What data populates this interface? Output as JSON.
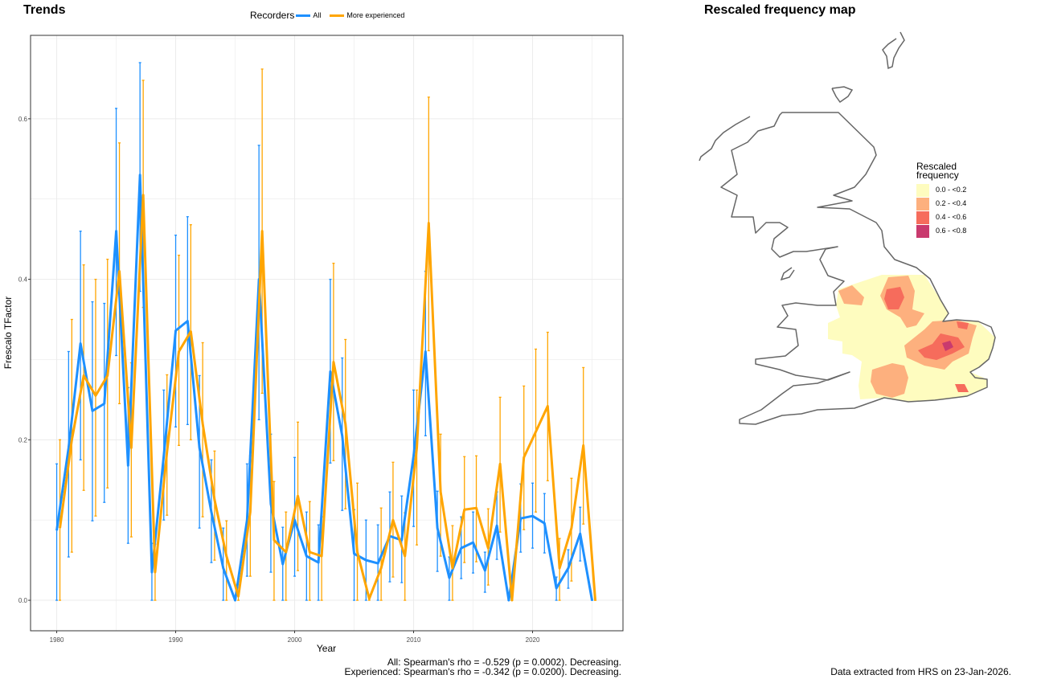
{
  "left_panel": {
    "title": "Trends"
  },
  "right_panel": {
    "title": "Rescaled frequency map"
  },
  "legend": {
    "title": "Recorders",
    "items": [
      {
        "label": "All",
        "color": "#1E90FF"
      },
      {
        "label": "More experienced",
        "color": "#FFA500"
      }
    ]
  },
  "footer": {
    "stats_all": "All: Spearman's rho = -0.529 (p = 0.0002). Decreasing.",
    "stats_experienced": "Experienced: Spearman's rho = -0.342 (p = 0.0200). Decreasing.",
    "data_note": "Data extracted from HRS on 23-Jan-2026."
  },
  "map_legend": {
    "title_line1": "Rescaled",
    "title_line2": "frequency",
    "items": [
      {
        "label": "0.0 - <0.2",
        "color": "#FEFCBF"
      },
      {
        "label": "0.2 - <0.4",
        "color": "#FDB07E"
      },
      {
        "label": "0.4 - <0.6",
        "color": "#F66C5C"
      },
      {
        "label": "0.6 - <0.8",
        "color": "#C93A6E"
      }
    ]
  },
  "chart_data": {
    "type": "line",
    "xlabel": "Year",
    "ylabel": "Frescalo TFactor",
    "xlim": [
      1977.8,
      2027.6
    ],
    "ylim": [
      -0.038,
      0.704
    ],
    "xticks": [
      1980,
      1990,
      2000,
      2010,
      2020
    ],
    "xtick_labels": [
      "1980",
      "1990",
      "2000",
      "2010",
      "2020"
    ],
    "yticks": [
      0.0,
      0.2,
      0.4,
      0.6
    ],
    "ytick_labels": [
      "0.0",
      "0.2",
      "0.4",
      "0.6"
    ],
    "grid": true,
    "legend_position": "top",
    "x": [
      1980,
      1981,
      1982,
      1983,
      1984,
      1985,
      1986,
      1987,
      1988,
      1989,
      1990,
      1991,
      1992,
      1993,
      1994,
      1995,
      1996,
      1997,
      1998,
      1999,
      2000,
      2001,
      2002,
      2003,
      2004,
      2005,
      2006,
      2007,
      2008,
      2009,
      2010,
      2011,
      2012,
      2013,
      2014,
      2015,
      2016,
      2017,
      2018,
      2019,
      2020,
      2021,
      2022,
      2023,
      2024,
      2025
    ],
    "series": [
      {
        "name": "All",
        "color": "#1E90FF",
        "values": [
          0.087,
          0.19,
          0.32,
          0.236,
          0.245,
          0.46,
          0.168,
          0.53,
          0.035,
          0.18,
          0.336,
          0.348,
          0.19,
          0.11,
          0.04,
          0.0,
          0.1,
          0.4,
          0.12,
          0.045,
          0.1,
          0.055,
          0.047,
          0.285,
          0.205,
          0.058,
          0.05,
          0.046,
          0.08,
          0.075,
          0.18,
          0.31,
          0.09,
          0.028,
          0.065,
          0.072,
          0.037,
          0.093,
          0.0,
          0.102,
          0.105,
          0.096,
          0.015,
          0.04,
          0.083,
          0.0
        ],
        "lower": [
          0,
          0.054,
          0.175,
          0.099,
          0.122,
          0.305,
          0.071,
          0.385,
          0,
          0.1,
          0.216,
          0.219,
          0.09,
          0.047,
          0,
          0,
          0.03,
          0.225,
          0.035,
          0,
          0.03,
          0,
          0,
          0.171,
          0.112,
          0,
          0,
          0,
          0.023,
          0.022,
          0.092,
          0.205,
          0.036,
          0,
          0.027,
          0.034,
          0.01,
          0.051,
          0,
          0.06,
          0.065,
          0.059,
          0,
          0.015,
          0.049,
          0
        ],
        "upper": [
          0.17,
          0.31,
          0.46,
          0.372,
          0.37,
          0.613,
          0.265,
          0.67,
          0.071,
          0.262,
          0.455,
          0.478,
          0.28,
          0.175,
          0.09,
          0.003,
          0.17,
          0.567,
          0.207,
          0.091,
          0.178,
          0.11,
          0.094,
          0.4,
          0.302,
          0.113,
          0.1,
          0.094,
          0.135,
          0.13,
          0.262,
          0.41,
          0.136,
          0.054,
          0.104,
          0.11,
          0.06,
          0.135,
          0.0,
          0.145,
          0.146,
          0.133,
          0.029,
          0.063,
          0.116,
          0.0
        ]
      },
      {
        "name": "More experienced",
        "color": "#FFA500",
        "values": [
          0.09,
          0.2,
          0.28,
          0.255,
          0.28,
          0.41,
          0.19,
          0.505,
          0.035,
          0.185,
          0.31,
          0.335,
          0.22,
          0.125,
          0.055,
          0.005,
          0.11,
          0.46,
          0.075,
          0.06,
          0.13,
          0.06,
          0.055,
          0.297,
          0.22,
          0.06,
          0.002,
          0.04,
          0.1,
          0.055,
          0.19,
          0.47,
          0.135,
          0.04,
          0.113,
          0.115,
          0.065,
          0.17,
          0.0,
          0.178,
          0.21,
          0.242,
          0.04,
          0.09,
          0.193,
          0.0
        ],
        "lower": [
          0,
          0.06,
          0.137,
          0.105,
          0.14,
          0.245,
          0.079,
          0.365,
          0,
          0.106,
          0.193,
          0.2,
          0.104,
          0.05,
          0,
          0,
          0.03,
          0.258,
          0,
          0,
          0.037,
          0,
          0,
          0.174,
          0.114,
          0,
          0,
          0,
          0.029,
          0,
          0.069,
          0.311,
          0.055,
          0,
          0.047,
          0.048,
          0.019,
          0.085,
          0,
          0.088,
          0.11,
          0.149,
          0,
          0.024,
          0.095,
          0
        ],
        "upper": [
          0.2,
          0.35,
          0.418,
          0.4,
          0.425,
          0.57,
          0.296,
          0.648,
          0.07,
          0.281,
          0.43,
          0.468,
          0.321,
          0.186,
          0.099,
          0.008,
          0.18,
          0.662,
          0.148,
          0.11,
          0.222,
          0.123,
          0.104,
          0.42,
          0.325,
          0.146,
          0.005,
          0.115,
          0.172,
          0.109,
          0.262,
          0.627,
          0.207,
          0.093,
          0.179,
          0.18,
          0.114,
          0.253,
          0.0,
          0.267,
          0.313,
          0.334,
          0.077,
          0.152,
          0.29,
          0.0
        ]
      }
    ]
  }
}
